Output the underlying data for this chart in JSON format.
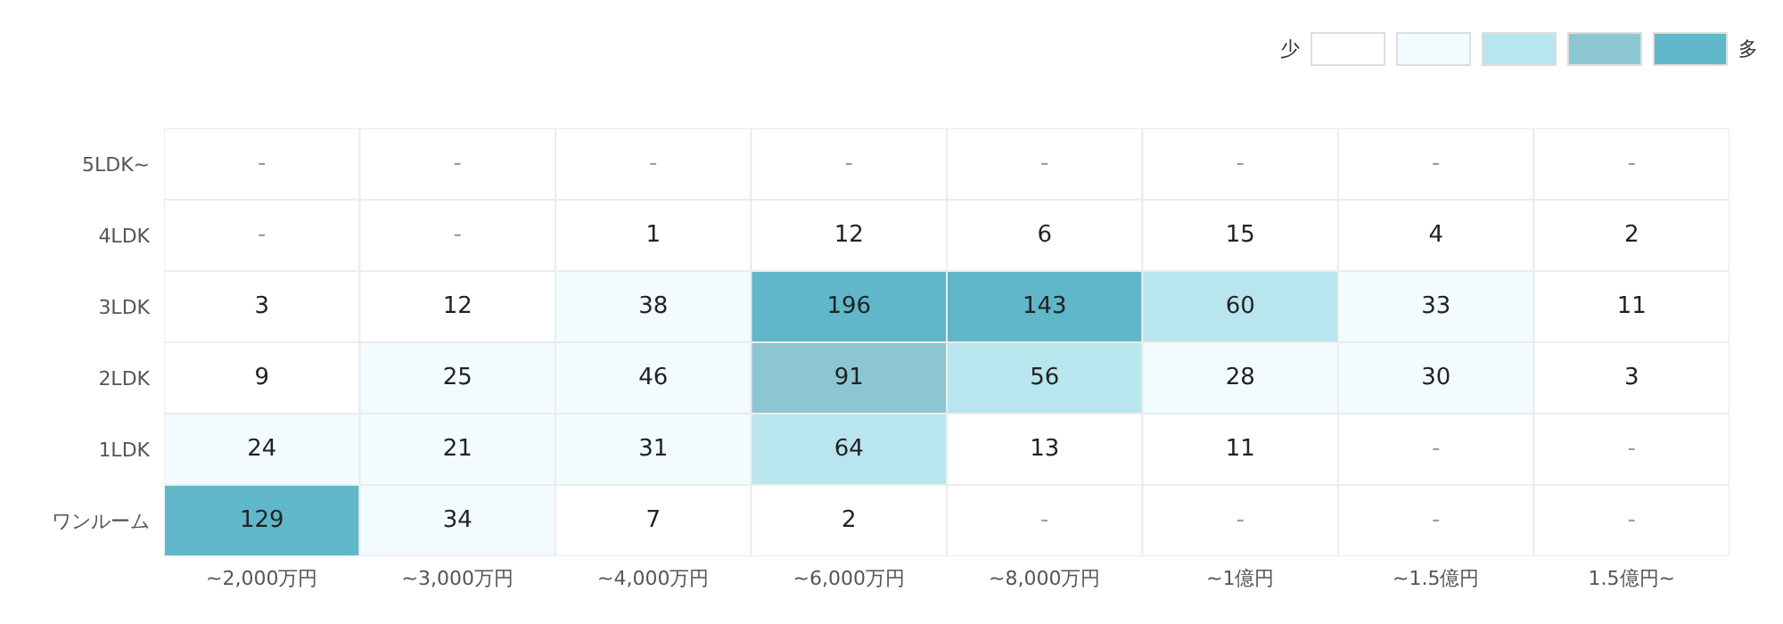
{
  "chart_data": {
    "type": "heatmap",
    "categories": [
      "~2,000万円",
      "~3,000万円",
      "~4,000万円",
      "~6,000万円",
      "~8,000万円",
      "~1億円",
      "~1.5億円",
      "1.5億円~"
    ],
    "y_categories": [
      "5LDK~",
      "4LDK",
      "3LDK",
      "2LDK",
      "1LDK",
      "ワンルーム"
    ],
    "cells": [
      [
        null,
        null,
        null,
        null,
        null,
        null,
        null,
        null
      ],
      [
        null,
        null,
        1,
        12,
        6,
        15,
        4,
        2
      ],
      [
        3,
        12,
        38,
        196,
        143,
        60,
        33,
        11
      ],
      [
        9,
        25,
        46,
        91,
        56,
        28,
        30,
        3
      ],
      [
        24,
        21,
        31,
        64,
        13,
        11,
        null,
        null
      ],
      [
        129,
        34,
        7,
        2,
        null,
        null,
        null,
        null
      ]
    ],
    "cell_labels": [
      [
        "-",
        "-",
        "-",
        "-",
        "-",
        "-",
        "-",
        "-"
      ],
      [
        "-",
        "-",
        "1",
        "12",
        "6",
        "15",
        "4",
        "2"
      ],
      [
        "3",
        "12",
        "38",
        "196",
        "143",
        "60",
        "33",
        "11"
      ],
      [
        "9",
        "25",
        "46",
        "91",
        "56",
        "28",
        "30",
        "3"
      ],
      [
        "24",
        "21",
        "31",
        "64",
        "13",
        "11",
        "-",
        "-"
      ],
      [
        "129",
        "34",
        "7",
        "2",
        "-",
        "-",
        "-",
        "-"
      ]
    ],
    "colors": [
      "#ffffff",
      "#f2fbfd",
      "#b9e5ee",
      "#8dc6d3",
      "#60b7ca"
    ],
    "annotations": [
      "少",
      "多"
    ]
  }
}
